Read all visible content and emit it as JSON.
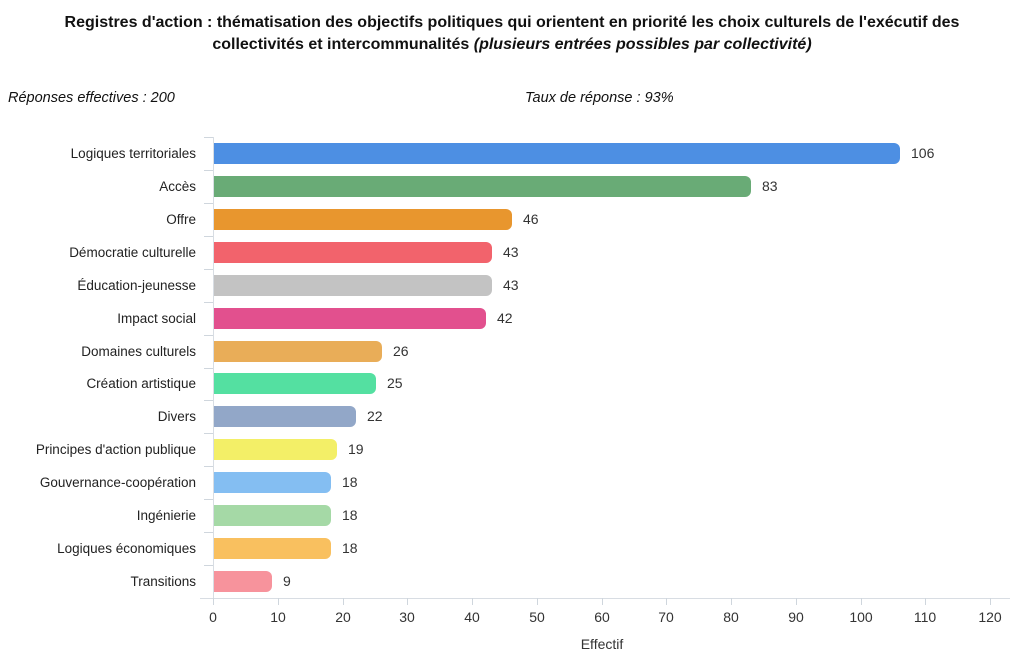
{
  "title": {
    "line1": "Registres d'action : thématisation des objectifs politiques qui orientent en priorité les choix culturels de l'exécutif des",
    "line2_main": "collectivités et intercommunalités ",
    "line2_note": "(plusieurs entrées possibles par collectivité)"
  },
  "meta": {
    "responses": "Réponses effectives : 200",
    "rate": "Taux de réponse : 93%"
  },
  "chart_data": {
    "type": "bar",
    "orientation": "horizontal",
    "title": "Registres d'action : thématisation des objectifs politiques qui orientent en priorité les choix culturels de l'exécutif des collectivités et intercommunalités (plusieurs entrées possibles par collectivité)",
    "categories": [
      "Logiques territoriales",
      "Accès",
      "Offre",
      "Démocratie culturelle",
      "Éducation-jeunesse",
      "Impact social",
      "Domaines culturels",
      "Création artistique",
      "Divers",
      "Principes d'action publique",
      "Gouvernance-coopération",
      "Ingénierie",
      "Logiques économiques",
      "Transitions"
    ],
    "values": [
      106,
      83,
      46,
      43,
      43,
      42,
      26,
      25,
      22,
      19,
      18,
      18,
      18,
      9
    ],
    "bar_colors": [
      "#4d8fe3",
      "#69ab76",
      "#e8962e",
      "#f2636c",
      "#c3c3c3",
      "#e2508e",
      "#e9ad58",
      "#54e0a1",
      "#92a7c8",
      "#f3ef67",
      "#84bef2",
      "#a5d9a6",
      "#f9c05f",
      "#f7939c"
    ],
    "xlabel": "Effectif",
    "ylabel": "",
    "xlim": [
      0,
      120
    ],
    "x_ticks": [
      0,
      10,
      20,
      30,
      40,
      50,
      60,
      70,
      80,
      90,
      100,
      110,
      120
    ],
    "grid": false,
    "legend": "none",
    "value_labels_shown": true
  },
  "colors": {
    "axis_line": "#d8dde3",
    "tick_line": "#cfd6dd",
    "text": "#111111"
  }
}
